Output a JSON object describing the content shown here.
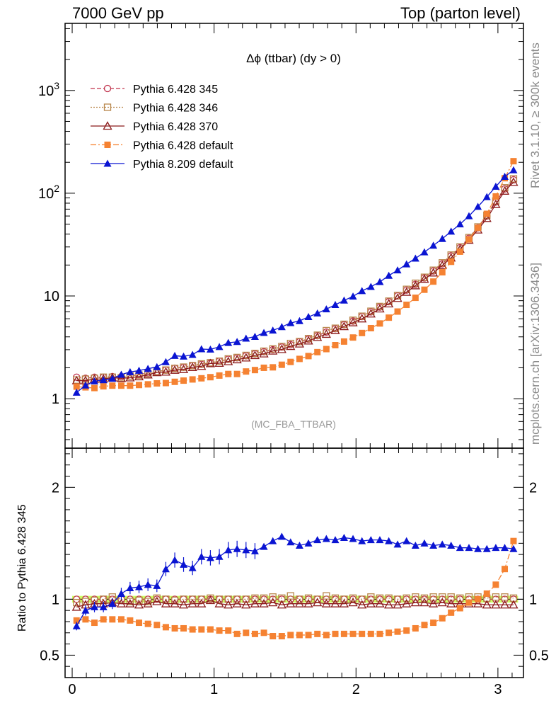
{
  "header": {
    "left": "7000 GeV pp",
    "right": "Top (parton level)"
  },
  "side_labels": {
    "rivet": "Rivet 3.1.10, ≥ 300k events",
    "mcplots": "mcplots.cern.ch [arXiv:1306.3436]"
  },
  "plot_title": "Δϕ (ttbar) (dy > 0)",
  "analysis_tag": "(MC_FBA_TTBAR)",
  "colors": {
    "py345": "#c0304a",
    "py346": "#b8864a",
    "py370": "#8b1a1a",
    "py6def": "#f58232",
    "py8": "#0a14d2",
    "band": "#ccff66"
  },
  "chart_data": [
    {
      "type": "line",
      "panel": "main",
      "title": "Δϕ (ttbar) (dy > 0)",
      "xlabel": "",
      "ylabel": "",
      "xlim": [
        -0.05,
        3.18
      ],
      "ylim": [
        0.33,
        4500
      ],
      "yscale": "log",
      "ytick_labels": [
        "1",
        "10",
        "10^2",
        "10^3"
      ],
      "xtick_labels": [
        "0",
        "1",
        "2",
        "3"
      ],
      "legend_position": "top-left",
      "x": [
        0.031,
        0.094,
        0.157,
        0.22,
        0.283,
        0.346,
        0.408,
        0.471,
        0.534,
        0.597,
        0.66,
        0.723,
        0.785,
        0.848,
        0.911,
        0.974,
        1.037,
        1.1,
        1.162,
        1.225,
        1.288,
        1.351,
        1.414,
        1.477,
        1.539,
        1.602,
        1.665,
        1.728,
        1.791,
        1.854,
        1.916,
        1.979,
        2.042,
        2.105,
        2.168,
        2.231,
        2.293,
        2.356,
        2.419,
        2.482,
        2.545,
        2.608,
        2.67,
        2.733,
        2.796,
        2.859,
        2.922,
        2.985,
        3.048,
        3.11
      ],
      "series": [
        {
          "name": "Pythia 6.428 345",
          "key": "py345",
          "marker": "open-circle",
          "dash": "6,3",
          "values": [
            1.62,
            1.58,
            1.62,
            1.62,
            1.64,
            1.64,
            1.66,
            1.72,
            1.78,
            1.84,
            1.9,
            1.98,
            2.02,
            2.1,
            2.16,
            2.22,
            2.32,
            2.42,
            2.5,
            2.62,
            2.74,
            2.86,
            3.0,
            3.18,
            3.36,
            3.58,
            3.8,
            4.1,
            4.45,
            4.8,
            5.25,
            5.7,
            6.3,
            7.0,
            7.8,
            8.8,
            10.0,
            11.4,
            13.0,
            15.0,
            17.5,
            20.5,
            24.5,
            29.5,
            36.5,
            46.0,
            60.0,
            82.0,
            110.0,
            135.0
          ]
        },
        {
          "name": "Pythia 6.428 346",
          "key": "py346",
          "marker": "open-square",
          "dash": "2,2",
          "values": [
            1.52,
            1.55,
            1.58,
            1.62,
            1.62,
            1.6,
            1.66,
            1.7,
            1.76,
            1.84,
            1.9,
            1.97,
            2.03,
            2.1,
            2.18,
            2.24,
            2.32,
            2.44,
            2.52,
            2.64,
            2.76,
            2.9,
            3.05,
            3.22,
            3.45,
            3.6,
            3.85,
            4.15,
            4.6,
            4.85,
            5.3,
            5.8,
            6.35,
            7.1,
            7.9,
            8.9,
            10.1,
            11.6,
            13.3,
            15.2,
            17.8,
            21.0,
            25.0,
            30.0,
            37.0,
            47.0,
            61.0,
            84.0,
            113.0,
            138.0
          ]
        },
        {
          "name": "Pythia 6.428 370",
          "key": "py370",
          "marker": "open-triangle",
          "dash": "",
          "values": [
            1.5,
            1.5,
            1.55,
            1.56,
            1.6,
            1.58,
            1.6,
            1.64,
            1.71,
            1.8,
            1.82,
            1.9,
            1.93,
            2.02,
            2.07,
            2.2,
            2.22,
            2.3,
            2.4,
            2.5,
            2.64,
            2.74,
            2.92,
            3.02,
            3.24,
            3.42,
            3.66,
            3.96,
            4.25,
            4.62,
            5.05,
            5.5,
            6.0,
            6.7,
            7.5,
            8.4,
            9.5,
            10.9,
            12.6,
            14.6,
            16.8,
            19.8,
            23.5,
            28.5,
            35.0,
            44.0,
            57.0,
            78.0,
            105.0,
            128.0
          ]
        },
        {
          "name": "Pythia 6.428 default",
          "key": "py6def",
          "marker": "filled-square",
          "dash": "8,3,2,3",
          "values": [
            1.31,
            1.29,
            1.27,
            1.32,
            1.34,
            1.34,
            1.34,
            1.36,
            1.38,
            1.41,
            1.42,
            1.46,
            1.5,
            1.54,
            1.58,
            1.62,
            1.68,
            1.74,
            1.74,
            1.84,
            1.9,
            2.0,
            2.02,
            2.14,
            2.28,
            2.44,
            2.6,
            2.84,
            3.04,
            3.32,
            3.6,
            3.94,
            4.36,
            4.86,
            5.4,
            6.15,
            7.05,
            8.2,
            9.6,
            11.5,
            13.8,
            17.0,
            21.5,
            27.0,
            35.5,
            46.0,
            63.0,
            93.0,
            140.0,
            205.0
          ]
        },
        {
          "name": "Pythia 8.209 default",
          "key": "py8",
          "marker": "filled-triangle",
          "dash": "",
          "values": [
            1.15,
            1.35,
            1.48,
            1.52,
            1.57,
            1.72,
            1.82,
            1.88,
            1.96,
            2.04,
            2.28,
            2.62,
            2.58,
            2.68,
            3.04,
            3.02,
            3.2,
            3.5,
            3.58,
            3.86,
            4.02,
            4.38,
            4.62,
            5.0,
            5.46,
            5.72,
            6.26,
            6.78,
            7.45,
            8.2,
            9.05,
            9.9,
            11.2,
            12.3,
            13.7,
            15.8,
            17.8,
            20.4,
            23.2,
            26.7,
            31.0,
            36.0,
            42.5,
            50.0,
            60.0,
            74.0,
            92.0,
            116.0,
            145.0,
            168.0
          ]
        }
      ]
    },
    {
      "type": "line",
      "panel": "ratio",
      "ylabel": "Ratio to Pythia 6.428 345",
      "xlabel": "",
      "xlim": [
        -0.05,
        3.18
      ],
      "ylim": [
        0.3,
        2.35
      ],
      "ytick_labels": [
        "0.5",
        "1",
        "2"
      ],
      "xtick_labels": [
        "0",
        "1",
        "2",
        "3"
      ],
      "x": [
        0.031,
        0.094,
        0.157,
        0.22,
        0.283,
        0.346,
        0.408,
        0.471,
        0.534,
        0.597,
        0.66,
        0.723,
        0.785,
        0.848,
        0.911,
        0.974,
        1.037,
        1.1,
        1.162,
        1.225,
        1.288,
        1.351,
        1.414,
        1.477,
        1.539,
        1.602,
        1.665,
        1.728,
        1.791,
        1.854,
        1.916,
        1.979,
        2.042,
        2.105,
        2.168,
        2.231,
        2.293,
        2.356,
        2.419,
        2.482,
        2.545,
        2.608,
        2.67,
        2.733,
        2.796,
        2.859,
        2.922,
        2.985,
        3.048,
        3.11
      ],
      "reference_band": [
        0.97,
        1.03
      ],
      "series": [
        {
          "name": "Pythia 6.428 345",
          "key": "py345",
          "marker": "open-circle",
          "dash": "6,3",
          "values": [
            1,
            1,
            1,
            1,
            1,
            1,
            1,
            1,
            1,
            1,
            1,
            1,
            1,
            1,
            1,
            1,
            1,
            1,
            1,
            1,
            1,
            1,
            1,
            1,
            1,
            1,
            1,
            1,
            1,
            1,
            1,
            1,
            1,
            1,
            1,
            1,
            1,
            1,
            1,
            1,
            1,
            1,
            1,
            1,
            1,
            1,
            1,
            1,
            1,
            1
          ]
        },
        {
          "name": "Pythia 6.428 346",
          "key": "py346",
          "marker": "open-square",
          "dash": "2,2",
          "values": [
            0.97,
            0.98,
            0.99,
            1.0,
            1.02,
            1.0,
            0.98,
            0.99,
            0.98,
            1.01,
            1.0,
            0.99,
            1.0,
            1.0,
            1.0,
            1.01,
            1.0,
            1.0,
            1.0,
            1.0,
            1.01,
            1.01,
            1.02,
            1.01,
            1.03,
            1.0,
            1.01,
            1.0,
            1.03,
            1.01,
            1.0,
            1.01,
            1.0,
            1.02,
            1.01,
            1.01,
            1.0,
            1.01,
            1.02,
            1.01,
            1.02,
            1.02,
            1.02,
            1.01,
            1.02,
            1.02,
            1.01,
            1.02,
            1.02,
            1.01
          ]
        },
        {
          "name": "Pythia 6.428 370",
          "key": "py370",
          "marker": "open-triangle",
          "dash": "",
          "values": [
            0.93,
            0.95,
            0.96,
            0.96,
            0.97,
            0.96,
            0.96,
            0.95,
            0.96,
            0.98,
            0.96,
            0.96,
            0.95,
            0.96,
            0.96,
            0.99,
            0.96,
            0.95,
            0.96,
            0.95,
            0.96,
            0.96,
            0.97,
            0.95,
            0.96,
            0.96,
            0.96,
            0.97,
            0.96,
            0.96,
            0.96,
            0.97,
            0.95,
            0.96,
            0.96,
            0.95,
            0.95,
            0.96,
            0.97,
            0.97,
            0.96,
            0.97,
            0.96,
            0.96,
            0.96,
            0.96,
            0.95,
            0.95,
            0.95,
            0.95
          ]
        },
        {
          "name": "Pythia 6.428 default",
          "key": "py6def",
          "marker": "filled-square",
          "dash": "8,3,2,3",
          "values": [
            0.81,
            0.82,
            0.79,
            0.82,
            0.82,
            0.82,
            0.81,
            0.79,
            0.78,
            0.77,
            0.75,
            0.74,
            0.74,
            0.73,
            0.73,
            0.73,
            0.72,
            0.72,
            0.69,
            0.7,
            0.69,
            0.7,
            0.67,
            0.67,
            0.68,
            0.68,
            0.68,
            0.69,
            0.68,
            0.69,
            0.69,
            0.69,
            0.69,
            0.69,
            0.69,
            0.7,
            0.71,
            0.72,
            0.74,
            0.77,
            0.79,
            0.83,
            0.88,
            0.92,
            0.97,
            1.0,
            1.05,
            1.13,
            1.27,
            1.52
          ]
        },
        {
          "name": "Pythia 8.209 default",
          "key": "py8",
          "marker": "filled-triangle",
          "dash": "",
          "values": [
            0.76,
            0.9,
            0.93,
            0.93,
            0.96,
            1.05,
            1.1,
            1.11,
            1.13,
            1.12,
            1.27,
            1.35,
            1.31,
            1.28,
            1.38,
            1.37,
            1.38,
            1.44,
            1.45,
            1.44,
            1.43,
            1.47,
            1.52,
            1.56,
            1.51,
            1.48,
            1.5,
            1.53,
            1.54,
            1.53,
            1.55,
            1.54,
            1.52,
            1.53,
            1.53,
            1.52,
            1.49,
            1.52,
            1.48,
            1.5,
            1.48,
            1.49,
            1.48,
            1.46,
            1.46,
            1.45,
            1.45,
            1.46,
            1.46,
            1.45
          ]
        }
      ]
    }
  ]
}
